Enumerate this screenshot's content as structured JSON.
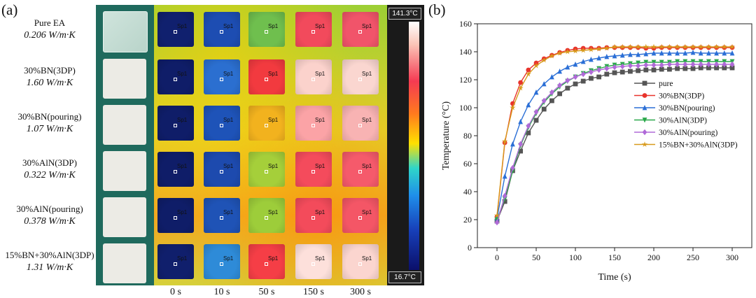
{
  "panel_a": {
    "label": "(a)",
    "samples": [
      {
        "name": "Pure EA",
        "conductivity": "0.206 W/m·K"
      },
      {
        "name": "30%BN(3DP)",
        "conductivity": "1.60 W/m·K"
      },
      {
        "name": "30%BN(pouring)",
        "conductivity": "1.07 W/m·K"
      },
      {
        "name": "30%AlN(3DP)",
        "conductivity": "0.322 W/m·K"
      },
      {
        "name": "30%AlN(pouring)",
        "conductivity": "0.378 W/m·K"
      },
      {
        "name": "15%BN+30%AlN(3DP)",
        "conductivity": "1.31 W/m·K"
      }
    ],
    "spot_label": "Sp1",
    "times": [
      "0 s",
      "10 s",
      "50 s",
      "150 s",
      "300 s"
    ],
    "colorbar": {
      "max": "141.3°C",
      "min": "16.7°C"
    },
    "tile_colors": [
      [
        "#10206e",
        "#1d4db2",
        "#6fbf4e",
        "#f24a5c",
        "#f1546a"
      ],
      [
        "#0f1d68",
        "#2b6fd0",
        "#f23a3f",
        "#fbd2cc",
        "#fad6d0"
      ],
      [
        "#0f1d68",
        "#1e53b8",
        "#f2b21e",
        "#fba3a6",
        "#f8b3b3"
      ],
      [
        "#0f1d68",
        "#1d4aae",
        "#a5cf3a",
        "#f44b5c",
        "#f55a6b"
      ],
      [
        "#0f1d68",
        "#1f53b6",
        "#9dcd3a",
        "#f34b5b",
        "#f45666"
      ],
      [
        "#101f6c",
        "#2e8bd8",
        "#f53e46",
        "#fde0db",
        "#fbd5cf"
      ]
    ]
  },
  "panel_b": {
    "label": "(b)",
    "chart_data": {
      "type": "line",
      "xlabel": "Time (s)",
      "ylabel": "Temperature (°C)",
      "xlim": [
        -25,
        325
      ],
      "ylim": [
        0,
        160
      ],
      "xticks": [
        0,
        50,
        100,
        150,
        200,
        250,
        300
      ],
      "yticks": [
        0,
        20,
        40,
        60,
        80,
        100,
        120,
        140,
        160
      ],
      "legend_position": "right",
      "x": [
        0,
        10,
        20,
        30,
        40,
        50,
        60,
        70,
        80,
        90,
        100,
        110,
        120,
        130,
        140,
        150,
        160,
        170,
        180,
        190,
        200,
        210,
        220,
        230,
        240,
        250,
        260,
        270,
        280,
        290,
        300
      ],
      "series": [
        {
          "name": "pure",
          "color": "#555555",
          "marker": "square",
          "values": [
            19,
            33,
            55,
            69,
            82,
            91,
            99,
            105,
            110,
            114,
            117,
            119,
            121,
            122,
            124,
            125,
            125.5,
            126,
            126.5,
            127,
            127,
            127.5,
            127.5,
            128,
            128,
            128,
            128.5,
            128.5,
            128.5,
            128.5,
            128.5
          ]
        },
        {
          "name": "30%BN(3DP)",
          "color": "#e8342c",
          "marker": "circle",
          "values": [
            22,
            75,
            103,
            118,
            127,
            132,
            135,
            137.5,
            139.5,
            141,
            142,
            142.5,
            142.5,
            142.5,
            143,
            143,
            143,
            143,
            143,
            142.5,
            142.5,
            143,
            143,
            143,
            143,
            143,
            143,
            143,
            143,
            143,
            143
          ]
        },
        {
          "name": "30%BN(pouring)",
          "color": "#2b6fd6",
          "marker": "triangle-up",
          "values": [
            21,
            51,
            74,
            90,
            102,
            111,
            117,
            122,
            126,
            129,
            131,
            133,
            134.5,
            135.5,
            136.5,
            137,
            137.5,
            138,
            138,
            138.5,
            139,
            139,
            139,
            139,
            139,
            139.5,
            139,
            139,
            139,
            139,
            139
          ]
        },
        {
          "name": "30%AlN(3DP)",
          "color": "#2aa84a",
          "marker": "triangle-down",
          "values": [
            20,
            35,
            55,
            73,
            86,
            96,
            104,
            110,
            115,
            119,
            122,
            124.5,
            126.5,
            128,
            129.5,
            130.5,
            131,
            131.5,
            132,
            132.5,
            132.5,
            132.5,
            132.5,
            133,
            133,
            133,
            133,
            133,
            133,
            133,
            133
          ]
        },
        {
          "name": "30%AlN(pouring)",
          "color": "#b06ad8",
          "marker": "diamond",
          "values": [
            18,
            37,
            57,
            74,
            87,
            97,
            105,
            111,
            116,
            119.5,
            122,
            124,
            125.5,
            127,
            128,
            129,
            129.5,
            130,
            130,
            130.5,
            130.5,
            130.5,
            131,
            131,
            131,
            131,
            131,
            131,
            131,
            131,
            131
          ]
        },
        {
          "name": "15%BN+30%AlN(3DP)",
          "color": "#d89a1c",
          "marker": "star",
          "values": [
            23,
            76,
            100,
            114,
            124,
            130,
            134,
            137,
            139,
            140,
            140.5,
            141,
            141.5,
            142,
            142.5,
            143.5,
            143.5,
            143.5,
            143.5,
            143.5,
            143.5,
            143.5,
            143.5,
            143.5,
            143.5,
            143.5,
            143.5,
            143.5,
            143.5,
            143.5,
            143.5
          ]
        }
      ]
    }
  }
}
